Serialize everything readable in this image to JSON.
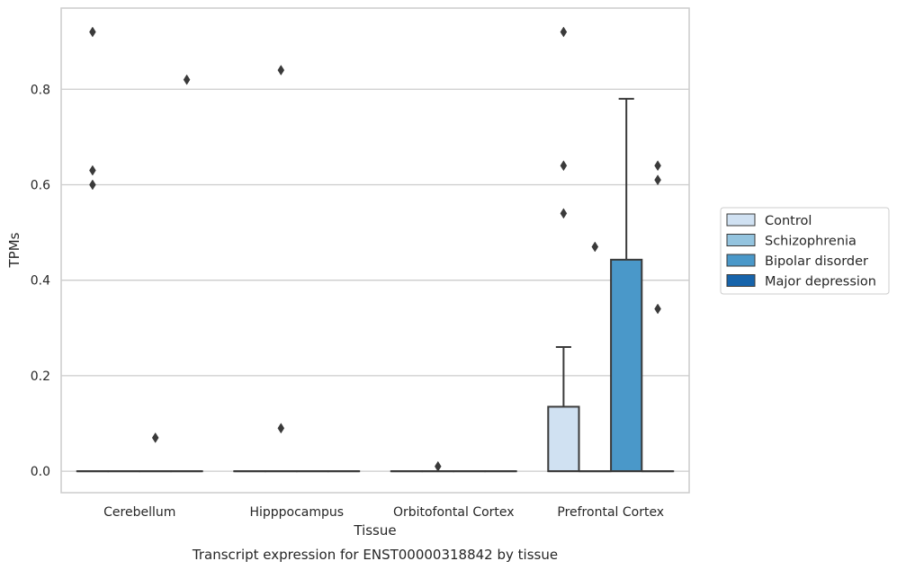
{
  "chart_data": {
    "type": "box",
    "title": "Transcript expression for ENST00000318842 by tissue",
    "xlabel": "Tissue",
    "ylabel": "TPMs",
    "categories": [
      "Cerebellum",
      "Hipppocampus",
      "Orbitofontal Cortex",
      "Prefrontal Cortex"
    ],
    "ylim": [
      -0.045,
      0.97
    ],
    "yticks": [
      "0.0",
      "0.2",
      "0.4",
      "0.6",
      "0.8"
    ],
    "ytick_values": [
      0.0,
      0.2,
      0.4,
      0.6,
      0.8
    ],
    "grid": "horizontal",
    "legend": {
      "placement": "right",
      "entries": [
        "Control",
        "Schizophrenia",
        "Bipolar disorder",
        "Major depression"
      ]
    },
    "colors": {
      "Control": "#d0e1f2",
      "Schizophrenia": "#94c4df",
      "Bipolar disorder": "#4a98c9",
      "Major depression": "#1764ab",
      "edge": "#3a3a3a",
      "grid": "#cccccc"
    },
    "series": [
      {
        "name": "Control",
        "boxes": [
          {
            "q1": 0,
            "median": 0,
            "q3": 0,
            "whisker_low": 0,
            "whisker_high": 0,
            "outliers": [
              0.92,
              0.63,
              0.6
            ]
          },
          {
            "q1": 0,
            "median": 0,
            "q3": 0,
            "whisker_low": 0,
            "whisker_high": 0,
            "outliers": []
          },
          {
            "q1": 0,
            "median": 0,
            "q3": 0,
            "whisker_low": 0,
            "whisker_high": 0,
            "outliers": []
          },
          {
            "q1": 0,
            "median": 0,
            "q3": 0.135,
            "whisker_low": 0,
            "whisker_high": 0.26,
            "outliers": [
              0.92,
              0.64,
              0.54
            ]
          }
        ]
      },
      {
        "name": "Schizophrenia",
        "boxes": [
          {
            "q1": 0,
            "median": 0,
            "q3": 0,
            "whisker_low": 0,
            "whisker_high": 0,
            "outliers": []
          },
          {
            "q1": 0,
            "median": 0,
            "q3": 0,
            "whisker_low": 0,
            "whisker_high": 0,
            "outliers": [
              0.84,
              0.09
            ]
          },
          {
            "q1": 0,
            "median": 0,
            "q3": 0,
            "whisker_low": 0,
            "whisker_high": 0,
            "outliers": [
              0.01
            ]
          },
          {
            "q1": 0,
            "median": 0,
            "q3": 0,
            "whisker_low": 0,
            "whisker_high": 0,
            "outliers": [
              0.47
            ]
          }
        ]
      },
      {
        "name": "Bipolar disorder",
        "boxes": [
          {
            "q1": 0,
            "median": 0,
            "q3": 0,
            "whisker_low": 0,
            "whisker_high": 0,
            "outliers": [
              0.07
            ]
          },
          {
            "q1": 0,
            "median": 0,
            "q3": 0,
            "whisker_low": 0,
            "whisker_high": 0,
            "outliers": []
          },
          {
            "q1": 0,
            "median": 0,
            "q3": 0,
            "whisker_low": 0,
            "whisker_high": 0,
            "outliers": []
          },
          {
            "q1": 0,
            "median": 0,
            "q3": 0.443,
            "whisker_low": 0,
            "whisker_high": 0.78,
            "outliers": []
          }
        ]
      },
      {
        "name": "Major depression",
        "boxes": [
          {
            "q1": 0,
            "median": 0,
            "q3": 0,
            "whisker_low": 0,
            "whisker_high": 0,
            "outliers": [
              0.82
            ]
          },
          {
            "q1": 0,
            "median": 0,
            "q3": 0,
            "whisker_low": 0,
            "whisker_high": 0,
            "outliers": []
          },
          {
            "q1": 0,
            "median": 0,
            "q3": 0,
            "whisker_low": 0,
            "whisker_high": 0,
            "outliers": []
          },
          {
            "q1": 0,
            "median": 0,
            "q3": 0,
            "whisker_low": 0,
            "whisker_high": 0,
            "outliers": [
              0.64,
              0.61,
              0.34
            ]
          }
        ]
      }
    ]
  }
}
